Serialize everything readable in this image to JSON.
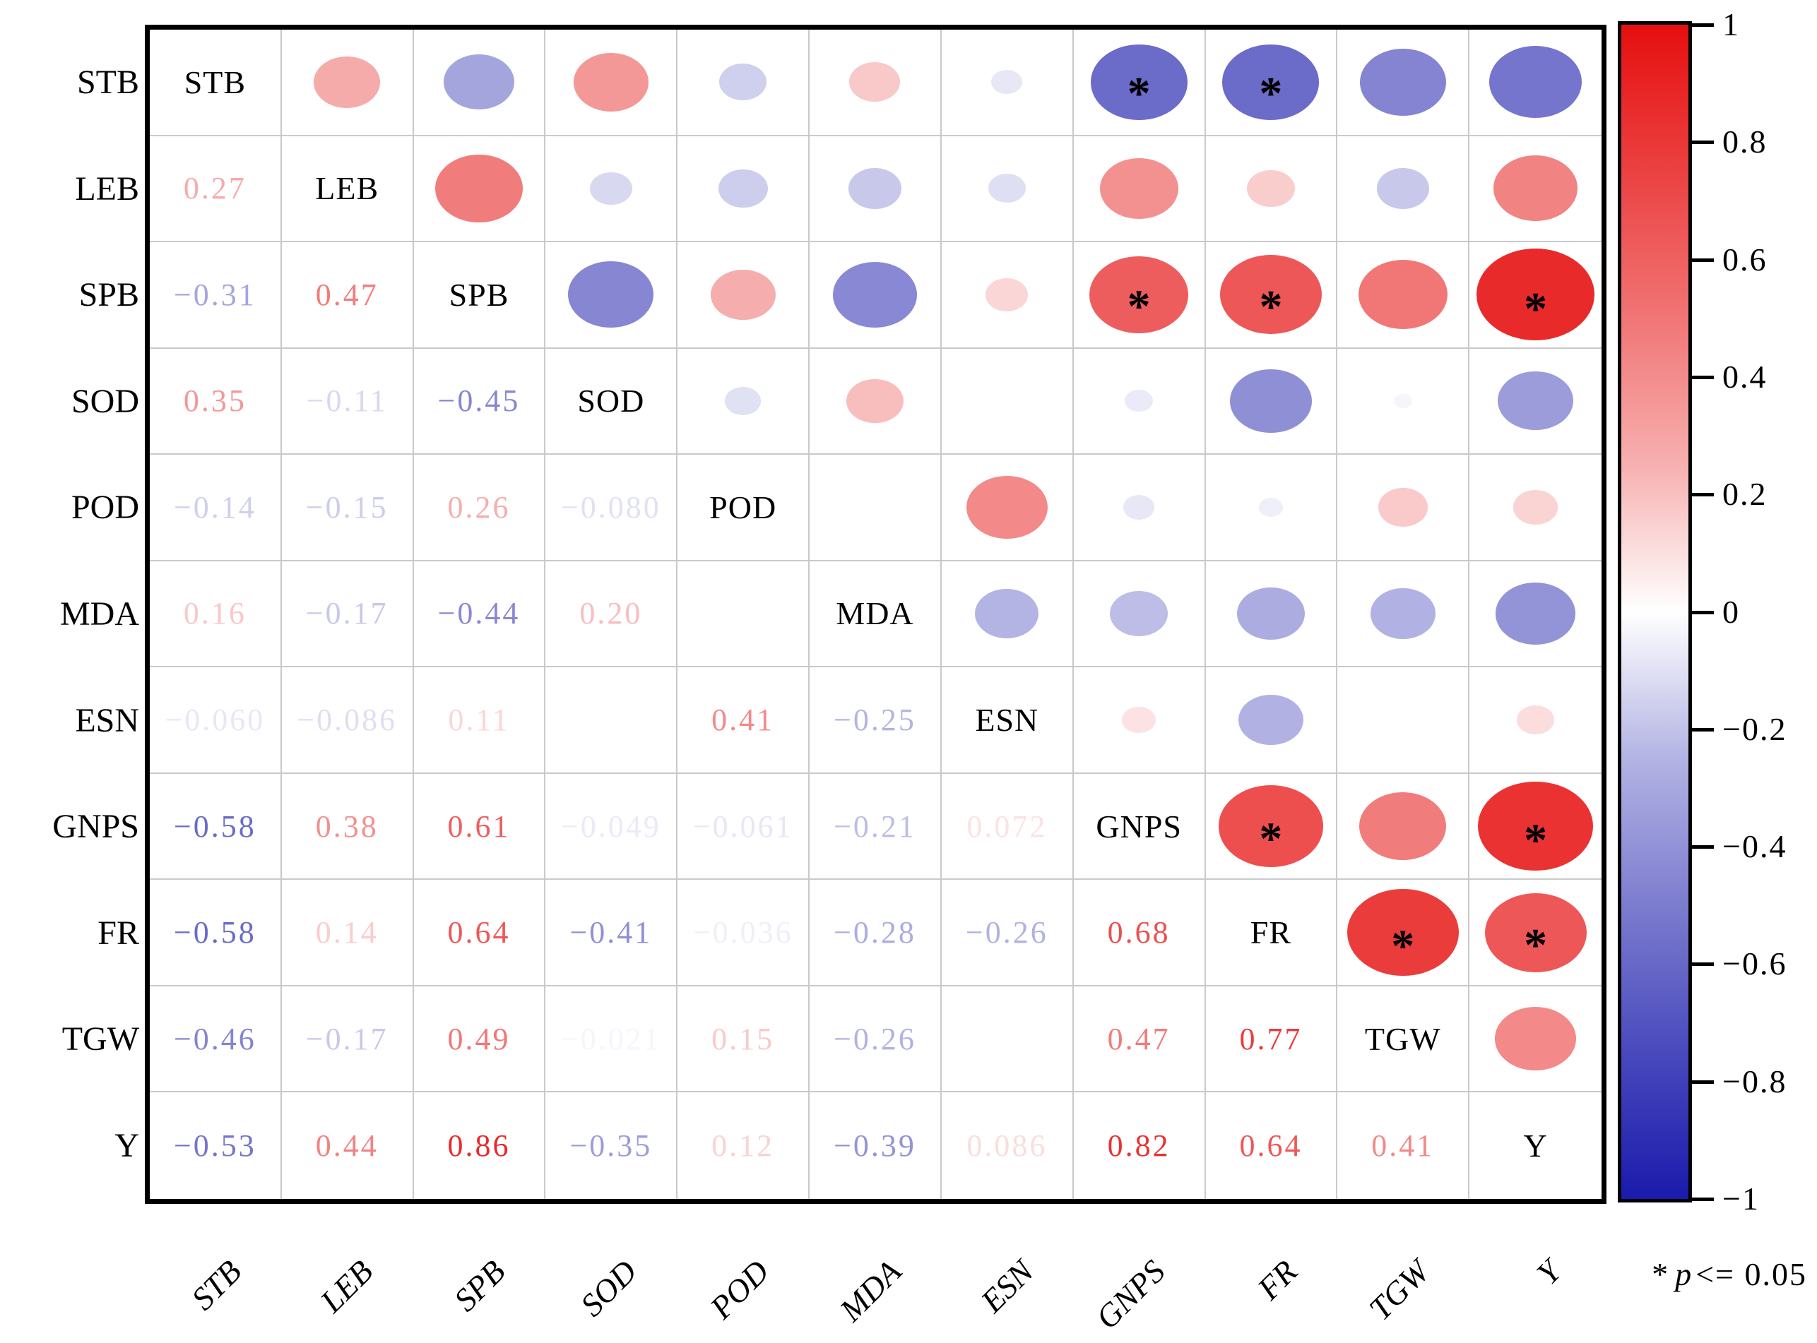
{
  "chart_data": {
    "type": "heatmap",
    "subtype": "correlation-matrix-corrplot",
    "title": "",
    "variables": [
      "STB",
      "LEB",
      "SPB",
      "SOD",
      "POD",
      "MDA",
      "ESN",
      "GNPS",
      "FR",
      "TGW",
      "Y"
    ],
    "layout": {
      "lower_triangle": "numbers",
      "upper_triangle": "circles",
      "diagonal": "variable-names",
      "grid": true,
      "legend_position": "right"
    },
    "colorbar": {
      "range": [
        -1,
        1
      ],
      "ticks": [
        "1",
        "0.8",
        "0.6",
        "0.4",
        "0.2",
        "0",
        "−0.2",
        "−0.4",
        "−0.6",
        "−0.8",
        "−1"
      ],
      "positive_max_color": "#e60f0f",
      "zero_color": "#ffffff",
      "negative_max_color": "#1a1aac"
    },
    "significance_note": {
      "star": "*",
      "symbol": "p",
      "rest": "<= 0.05",
      "threshold": 0.05
    },
    "pairs": [
      {
        "a": "LEB",
        "b": "STB",
        "r": 0.27,
        "label": "0.27",
        "significant": false
      },
      {
        "a": "SPB",
        "b": "STB",
        "r": -0.31,
        "label": "−0.31",
        "significant": false
      },
      {
        "a": "SPB",
        "b": "LEB",
        "r": 0.47,
        "label": "0.47",
        "significant": false
      },
      {
        "a": "SOD",
        "b": "STB",
        "r": 0.35,
        "label": "0.35",
        "significant": false
      },
      {
        "a": "SOD",
        "b": "LEB",
        "r": -0.11,
        "label": "−0.11",
        "significant": false
      },
      {
        "a": "SOD",
        "b": "SPB",
        "r": -0.45,
        "label": "−0.45",
        "significant": false
      },
      {
        "a": "POD",
        "b": "STB",
        "r": -0.14,
        "label": "−0.14",
        "significant": false
      },
      {
        "a": "POD",
        "b": "LEB",
        "r": -0.15,
        "label": "−0.15",
        "significant": false
      },
      {
        "a": "POD",
        "b": "SPB",
        "r": 0.26,
        "label": "0.26",
        "significant": false
      },
      {
        "a": "POD",
        "b": "SOD",
        "r": -0.08,
        "label": "−0.080",
        "significant": false
      },
      {
        "a": "MDA",
        "b": "STB",
        "r": 0.16,
        "label": "0.16",
        "significant": false
      },
      {
        "a": "MDA",
        "b": "LEB",
        "r": -0.17,
        "label": "−0.17",
        "significant": false
      },
      {
        "a": "MDA",
        "b": "SPB",
        "r": -0.44,
        "label": "−0.44",
        "significant": false
      },
      {
        "a": "MDA",
        "b": "SOD",
        "r": 0.2,
        "label": "0.20",
        "significant": false
      },
      {
        "a": "MDA",
        "b": "POD",
        "r": null,
        "label": "",
        "significant": false
      },
      {
        "a": "ESN",
        "b": "STB",
        "r": -0.06,
        "label": "−0.060",
        "significant": false
      },
      {
        "a": "ESN",
        "b": "LEB",
        "r": -0.086,
        "label": "−0.086",
        "significant": false
      },
      {
        "a": "ESN",
        "b": "SPB",
        "r": 0.11,
        "label": "0.11",
        "significant": false
      },
      {
        "a": "ESN",
        "b": "SOD",
        "r": null,
        "label": "",
        "significant": false
      },
      {
        "a": "ESN",
        "b": "POD",
        "r": 0.41,
        "label": "0.41",
        "significant": false
      },
      {
        "a": "ESN",
        "b": "MDA",
        "r": -0.25,
        "label": "−0.25",
        "significant": false
      },
      {
        "a": "GNPS",
        "b": "STB",
        "r": -0.58,
        "label": "−0.58",
        "significant": true
      },
      {
        "a": "GNPS",
        "b": "LEB",
        "r": 0.38,
        "label": "0.38",
        "significant": false
      },
      {
        "a": "GNPS",
        "b": "SPB",
        "r": 0.61,
        "label": "0.61",
        "significant": true
      },
      {
        "a": "GNPS",
        "b": "SOD",
        "r": -0.049,
        "label": "−0.049",
        "significant": false
      },
      {
        "a": "GNPS",
        "b": "POD",
        "r": -0.061,
        "label": "−0.061",
        "significant": false
      },
      {
        "a": "GNPS",
        "b": "MDA",
        "r": -0.21,
        "label": "−0.21",
        "significant": false
      },
      {
        "a": "GNPS",
        "b": "ESN",
        "r": 0.072,
        "label": "0.072",
        "significant": false
      },
      {
        "a": "FR",
        "b": "STB",
        "r": -0.58,
        "label": "−0.58",
        "significant": true
      },
      {
        "a": "FR",
        "b": "LEB",
        "r": 0.14,
        "label": "0.14",
        "significant": false
      },
      {
        "a": "FR",
        "b": "SPB",
        "r": 0.64,
        "label": "0.64",
        "significant": true
      },
      {
        "a": "FR",
        "b": "SOD",
        "r": -0.41,
        "label": "−0.41",
        "significant": false
      },
      {
        "a": "FR",
        "b": "POD",
        "r": -0.036,
        "label": "−0.036",
        "significant": false
      },
      {
        "a": "FR",
        "b": "MDA",
        "r": -0.28,
        "label": "−0.28",
        "significant": false
      },
      {
        "a": "FR",
        "b": "ESN",
        "r": -0.26,
        "label": "−0.26",
        "significant": false
      },
      {
        "a": "FR",
        "b": "GNPS",
        "r": 0.68,
        "label": "0.68",
        "significant": true
      },
      {
        "a": "TGW",
        "b": "STB",
        "r": -0.46,
        "label": "−0.46",
        "significant": false
      },
      {
        "a": "TGW",
        "b": "LEB",
        "r": -0.17,
        "label": "−0.17",
        "significant": false
      },
      {
        "a": "TGW",
        "b": "SPB",
        "r": 0.49,
        "label": "0.49",
        "significant": false
      },
      {
        "a": "TGW",
        "b": "SOD",
        "r": -0.021,
        "label": "−0.021",
        "significant": false
      },
      {
        "a": "TGW",
        "b": "POD",
        "r": 0.15,
        "label": "0.15",
        "significant": false
      },
      {
        "a": "TGW",
        "b": "MDA",
        "r": -0.26,
        "label": "−0.26",
        "significant": false
      },
      {
        "a": "TGW",
        "b": "ESN",
        "r": null,
        "label": "",
        "significant": false
      },
      {
        "a": "TGW",
        "b": "GNPS",
        "r": 0.47,
        "label": "0.47",
        "significant": false
      },
      {
        "a": "TGW",
        "b": "FR",
        "r": 0.77,
        "label": "0.77",
        "significant": true
      },
      {
        "a": "Y",
        "b": "STB",
        "r": -0.53,
        "label": "−0.53",
        "significant": false
      },
      {
        "a": "Y",
        "b": "LEB",
        "r": 0.44,
        "label": "0.44",
        "significant": false
      },
      {
        "a": "Y",
        "b": "SPB",
        "r": 0.86,
        "label": "0.86",
        "significant": true
      },
      {
        "a": "Y",
        "b": "SOD",
        "r": -0.35,
        "label": "−0.35",
        "significant": false
      },
      {
        "a": "Y",
        "b": "POD",
        "r": 0.12,
        "label": "0.12",
        "significant": false
      },
      {
        "a": "Y",
        "b": "MDA",
        "r": -0.39,
        "label": "−0.39",
        "significant": false
      },
      {
        "a": "Y",
        "b": "ESN",
        "r": 0.086,
        "label": "0.086",
        "significant": false
      },
      {
        "a": "Y",
        "b": "GNPS",
        "r": 0.82,
        "label": "0.82",
        "significant": true
      },
      {
        "a": "Y",
        "b": "FR",
        "r": 0.64,
        "label": "0.64",
        "significant": true
      },
      {
        "a": "Y",
        "b": "TGW",
        "r": 0.41,
        "label": "0.41",
        "significant": false
      }
    ]
  }
}
